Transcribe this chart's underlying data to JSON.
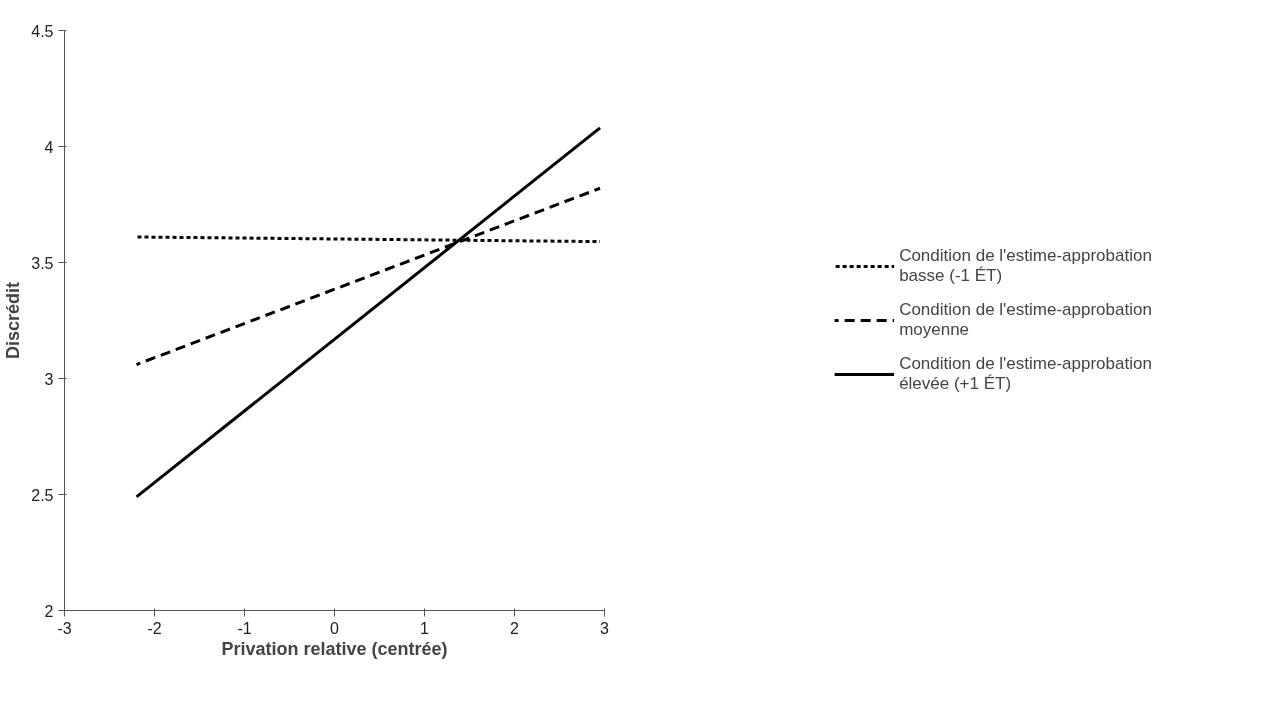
{
  "chart_data": {
    "type": "line",
    "xlabel": "Privation relative (centrée)",
    "ylabel": "Discrédit",
    "x": [
      -2.2,
      2.95
    ],
    "series": [
      {
        "name": "Condition de l'estime-approbation basse (-1 ÉT)",
        "color": "#000000",
        "line_style": "dotted",
        "values": [
          3.61,
          3.59
        ]
      },
      {
        "name": "Condition de l'estime-approbation moyenne",
        "color": "#000000",
        "line_style": "dashed",
        "values": [
          3.06,
          3.82
        ]
      },
      {
        "name": "Condition de l'estime-approbation élevée (+1 ÉT)",
        "color": "#000000",
        "line_style": "solid",
        "values": [
          2.49,
          4.08
        ]
      }
    ],
    "xlim": [
      -3,
      3
    ],
    "xticks": [
      -3,
      -2,
      -1,
      0,
      1,
      2,
      3
    ],
    "ylim": [
      2,
      4.5
    ],
    "yticks": [
      2,
      2.5,
      3,
      3.5,
      4,
      4.5
    ],
    "grid": false,
    "legend": "right"
  }
}
